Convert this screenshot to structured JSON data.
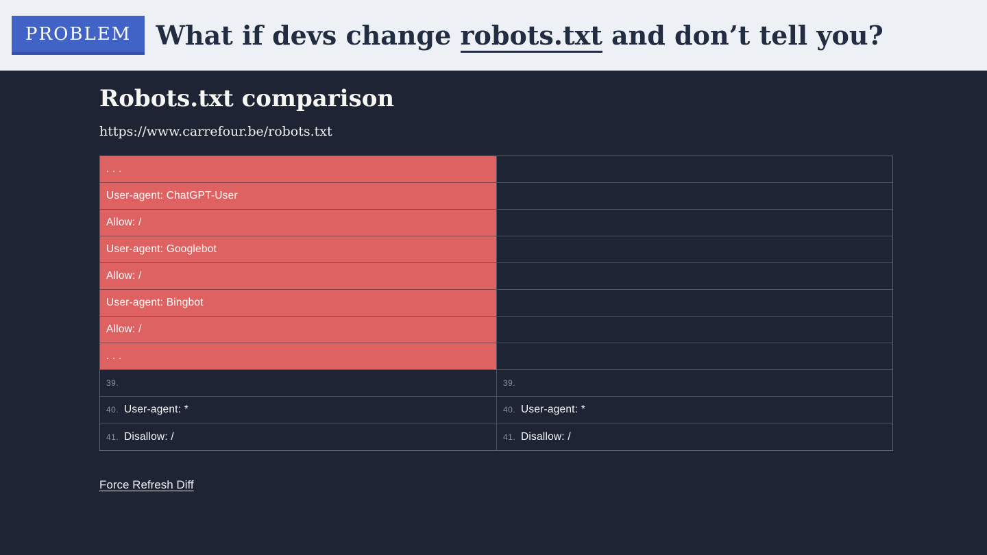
{
  "colors": {
    "topbar_bg": "#edf1f6",
    "badge_bg": "#4263c6",
    "badge_edge": "#3450af",
    "badge_text": "#ffffff",
    "title_text": "#232d41",
    "stage_bg": "#1e2434",
    "removed_bg": "#df6262",
    "cell_text": "#f7f7f8",
    "line_number": "#8b92a2",
    "table_border": "#5b6278",
    "link_text": "#eceef2"
  },
  "header": {
    "badge_label": "PROBLEM",
    "title_before": "What if devs change ",
    "title_underlined": "robots.txt",
    "title_after": " and don’t tell you?"
  },
  "main": {
    "heading": "Robots.txt comparison",
    "url": "https://www.carrefour.be/robots.txt",
    "link_label": "Force Refresh Diff"
  },
  "diff_table": {
    "rows": [
      {
        "left": {
          "num": "",
          "text": ". . .",
          "removed": true
        },
        "right": {
          "num": "",
          "text": ""
        }
      },
      {
        "left": {
          "num": "",
          "text": "User-agent: ChatGPT-User",
          "removed": true
        },
        "right": {
          "num": "",
          "text": ""
        }
      },
      {
        "left": {
          "num": "",
          "text": "Allow: /",
          "removed": true
        },
        "right": {
          "num": "",
          "text": ""
        }
      },
      {
        "left": {
          "num": "",
          "text": "User-agent: Googlebot",
          "removed": true
        },
        "right": {
          "num": "",
          "text": ""
        }
      },
      {
        "left": {
          "num": "",
          "text": "Allow: /",
          "removed": true
        },
        "right": {
          "num": "",
          "text": ""
        }
      },
      {
        "left": {
          "num": "",
          "text": "User-agent: Bingbot",
          "removed": true
        },
        "right": {
          "num": "",
          "text": ""
        }
      },
      {
        "left": {
          "num": "",
          "text": "Allow: /",
          "removed": true
        },
        "right": {
          "num": "",
          "text": ""
        }
      },
      {
        "left": {
          "num": "",
          "text": ". . .",
          "removed": true
        },
        "right": {
          "num": "",
          "text": ""
        }
      },
      {
        "left": {
          "num": "39.",
          "text": "",
          "removed": false
        },
        "right": {
          "num": "39.",
          "text": ""
        }
      },
      {
        "left": {
          "num": "40.",
          "text": "User-agent: *",
          "removed": false
        },
        "right": {
          "num": "40.",
          "text": "User-agent: *"
        }
      },
      {
        "left": {
          "num": "41.",
          "text": "Disallow: /",
          "removed": false
        },
        "right": {
          "num": "41.",
          "text": "Disallow: /"
        }
      }
    ]
  }
}
